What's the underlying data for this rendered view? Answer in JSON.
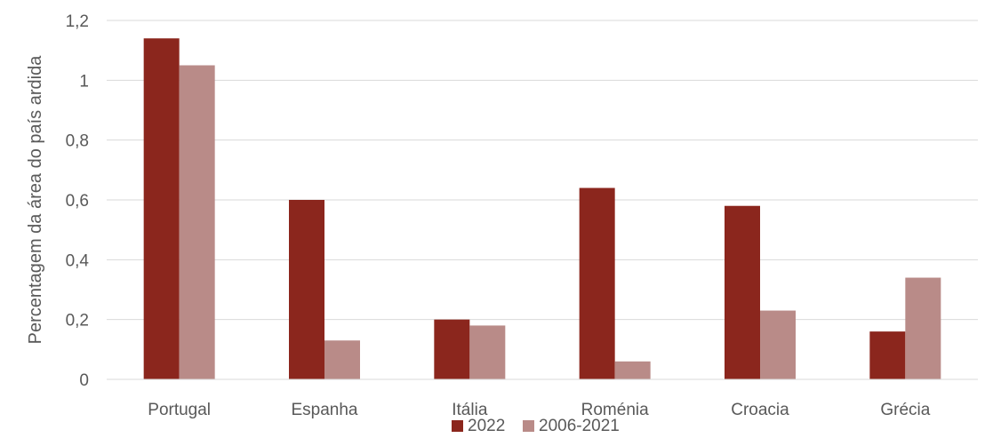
{
  "chart_data": {
    "type": "bar",
    "title": "",
    "xlabel": "",
    "ylabel": "Percentagem da área do país ardida",
    "categories": [
      "Portugal",
      "Espanha",
      "Itália",
      "Roménia",
      "Croacia",
      "Grécia"
    ],
    "series": [
      {
        "name": "2022",
        "color": "#8B261D",
        "values": [
          1.14,
          0.6,
          0.2,
          0.64,
          0.58,
          0.16
        ]
      },
      {
        "name": "2006-2021",
        "color": "#B98B88",
        "values": [
          1.05,
          0.13,
          0.18,
          0.06,
          0.23,
          0.34
        ]
      }
    ],
    "ylim": [
      0,
      1.2
    ],
    "yticks": [
      "0",
      "0,2",
      "0,4",
      "0,6",
      "0,8",
      "1",
      "1,2"
    ],
    "grid": true,
    "gridline_color": "#D9D9D9",
    "legend_position": "bottom"
  }
}
